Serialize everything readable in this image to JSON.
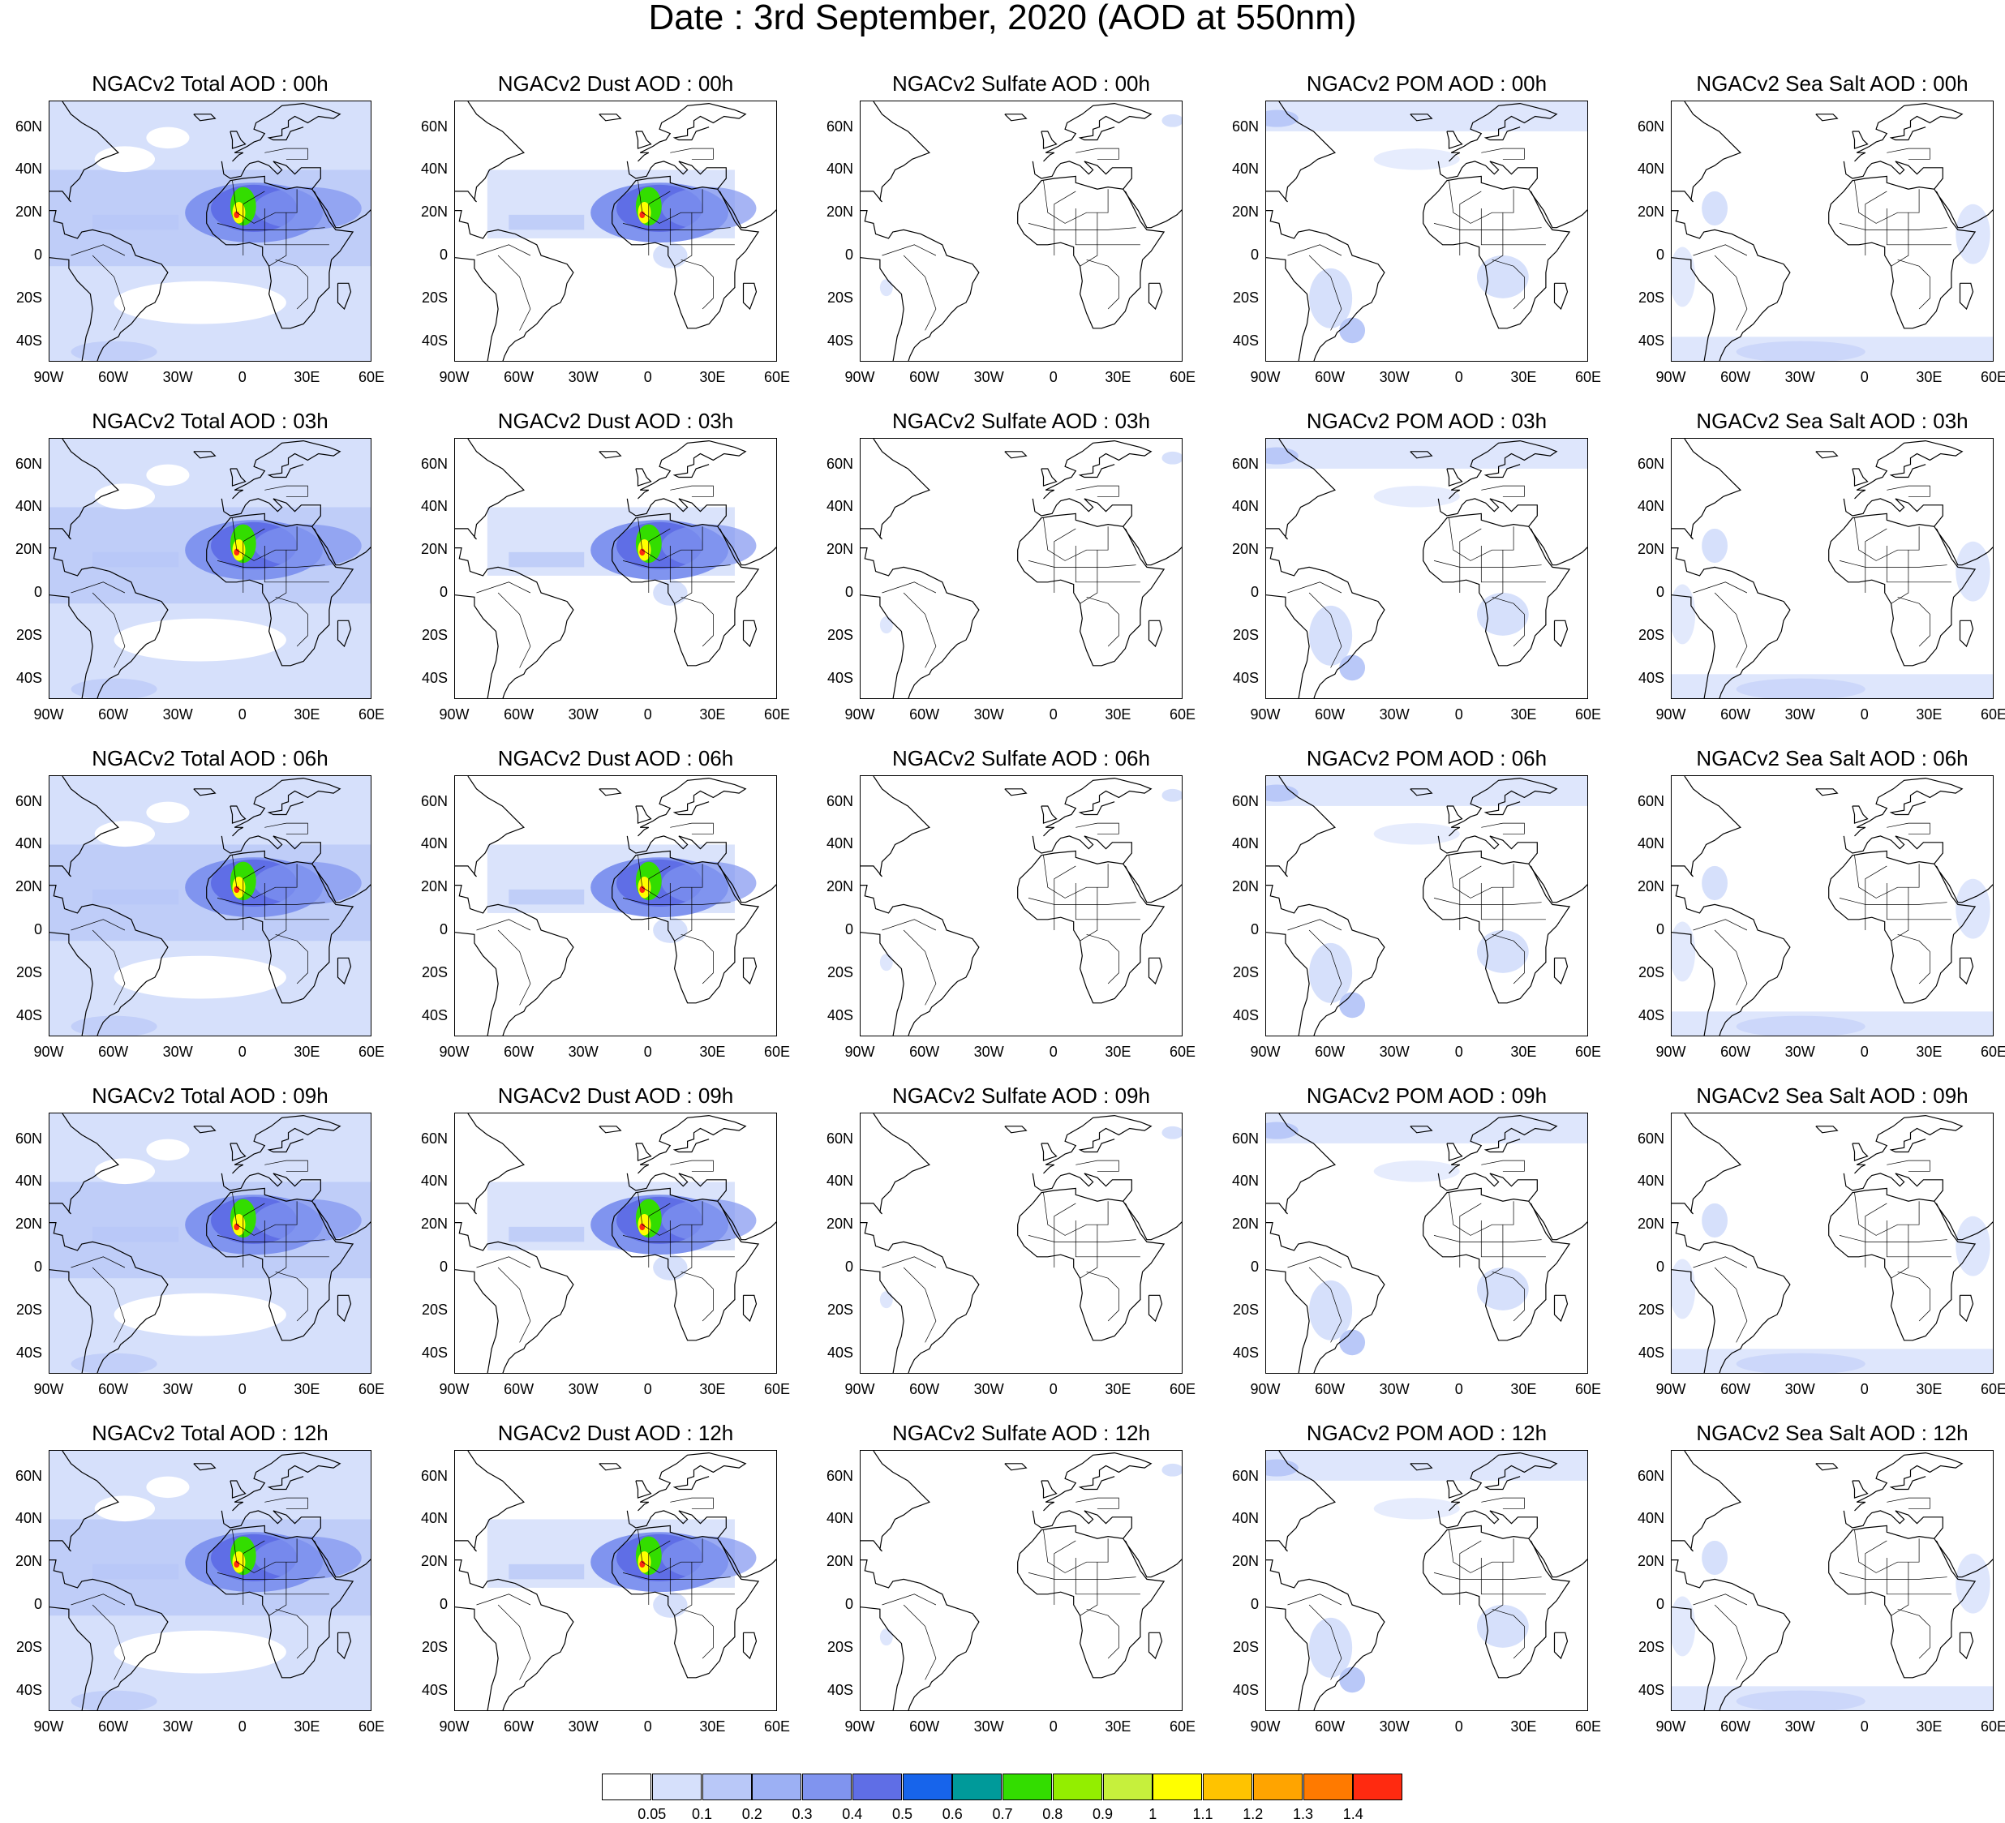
{
  "title": "Date : 3rd September, 2020 (AOD at 550nm)",
  "lat_ticks": [
    "60N",
    "40N",
    "20N",
    "0",
    "20S",
    "40S"
  ],
  "lon_ticks": [
    "90W",
    "60W",
    "30W",
    "0",
    "30E",
    "60E"
  ],
  "panels": [
    [
      "NGACv2 Total AOD : 00h",
      "NGACv2 Dust AOD : 00h",
      "NGACv2 Sulfate AOD : 00h",
      "NGACv2 POM AOD : 00h",
      "NGACv2 Sea Salt AOD : 00h"
    ],
    [
      "NGACv2 Total AOD : 03h",
      "NGACv2 Dust AOD : 03h",
      "NGACv2 Sulfate AOD : 03h",
      "NGACv2 POM AOD : 03h",
      "NGACv2 Sea Salt AOD : 03h"
    ],
    [
      "NGACv2 Total AOD : 06h",
      "NGACv2 Dust AOD : 06h",
      "NGACv2 Sulfate AOD : 06h",
      "NGACv2 POM AOD : 06h",
      "NGACv2 Sea Salt AOD : 06h"
    ],
    [
      "NGACv2 Total AOD : 09h",
      "NGACv2 Dust AOD : 09h",
      "NGACv2 Sulfate AOD : 09h",
      "NGACv2 POM AOD : 09h",
      "NGACv2 Sea Salt  AOD : 09h"
    ],
    [
      "NGACv2 Total AOD  : 12h",
      "NGACv2 Dust AOD : 12h",
      "NGACv2 Sulfate AOD : 12h",
      "NGACv2 POM  AOD : 12h",
      "NGACv2 Sea Salt  AOD : 12h"
    ]
  ],
  "colorbar": {
    "labels": [
      "0.05",
      "0.1",
      "0.2",
      "0.3",
      "0.4",
      "0.5",
      "0.6",
      "0.7",
      "0.8",
      "0.9",
      "1",
      "1.1",
      "1.2",
      "1.3",
      "1.4"
    ],
    "colors": [
      "#ffffff",
      "#d6e0fb",
      "#b9c8f8",
      "#9cb0f4",
      "#8094ef",
      "#5f6ee6",
      "#1764eb",
      "#009a9a",
      "#33dd00",
      "#93ee00",
      "#c6f03c",
      "#ffff00",
      "#ffc300",
      "#ffa400",
      "#ff7a00",
      "#ff2a10"
    ]
  },
  "map_colors": {
    "land_outline": "#000000",
    "light": "#d6e0fb",
    "medium": "#b9c8f8",
    "strong": "#8094ef",
    "deep": "#5f6ee6",
    "green": "#33dd00",
    "yellow": "#ffff00",
    "red": "#ff2a10"
  }
}
